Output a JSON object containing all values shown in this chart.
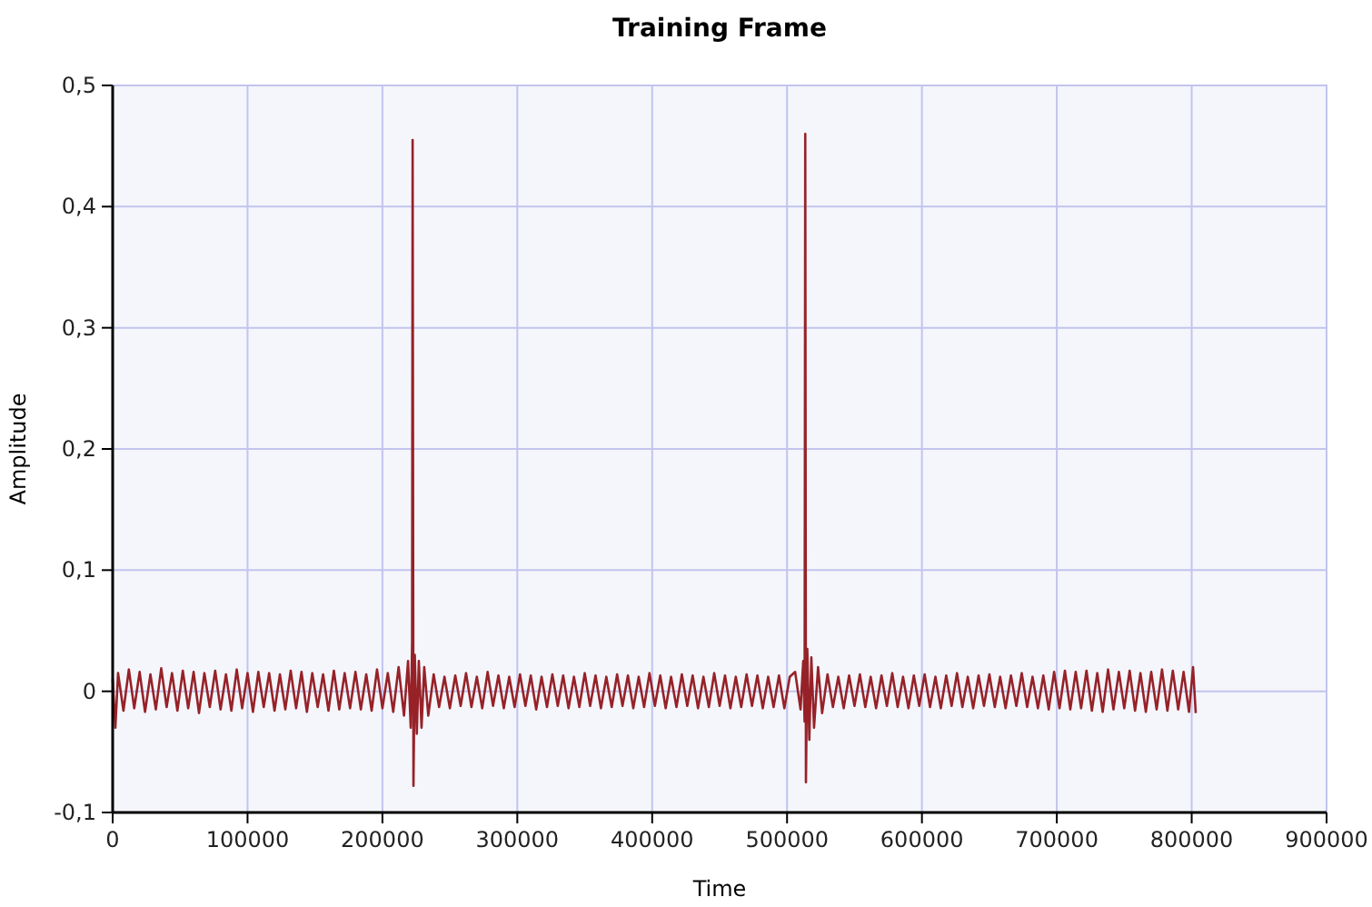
{
  "chart_data": {
    "type": "line",
    "title": "Training Frame",
    "xlabel": "Time",
    "ylabel": "Amplitude",
    "xlim": [
      0,
      900000
    ],
    "xticks": [
      0,
      100000,
      200000,
      300000,
      400000,
      500000,
      600000,
      700000,
      800000,
      900000
    ],
    "ylim": [
      -0.1,
      0.5
    ],
    "yticks": [
      {
        "value": -0.1,
        "label": "-0,1"
      },
      {
        "value": 0,
        "label": "0"
      },
      {
        "value": 0.1,
        "label": "0,1"
      },
      {
        "value": 0.2,
        "label": "0,2"
      },
      {
        "value": 0.3,
        "label": "0,3"
      },
      {
        "value": 0.4,
        "label": "0,4"
      },
      {
        "value": 0.5,
        "label": "0,5"
      }
    ],
    "grid": true,
    "marker": "none",
    "line_style": "solid",
    "series": [
      {
        "color": "#962228",
        "x": [
          0,
          2000,
          4000,
          8000,
          12000,
          16000,
          20000,
          24000,
          28000,
          32000,
          36000,
          40000,
          44000,
          48000,
          52000,
          56000,
          60000,
          64000,
          68000,
          72000,
          76000,
          80000,
          84000,
          88000,
          92000,
          96000,
          100000,
          104000,
          108000,
          112000,
          116000,
          120000,
          124000,
          128000,
          132000,
          136000,
          140000,
          144000,
          148000,
          152000,
          156000,
          160000,
          164000,
          168000,
          172000,
          176000,
          180000,
          184000,
          188000,
          192000,
          196000,
          200000,
          204000,
          208000,
          212000,
          216000,
          219000,
          221000,
          222000,
          222400,
          223000,
          224000,
          225500,
          227000,
          229000,
          231000,
          234000,
          238000,
          242000,
          246000,
          250000,
          254000,
          258000,
          262000,
          266000,
          270000,
          274000,
          278000,
          282000,
          286000,
          290000,
          294000,
          298000,
          302000,
          306000,
          310000,
          314000,
          318000,
          322000,
          326000,
          330000,
          334000,
          338000,
          342000,
          346000,
          350000,
          354000,
          358000,
          362000,
          366000,
          370000,
          374000,
          378000,
          382000,
          386000,
          390000,
          394000,
          398000,
          402000,
          406000,
          410000,
          414000,
          418000,
          422000,
          426000,
          430000,
          434000,
          438000,
          442000,
          446000,
          450000,
          454000,
          458000,
          462000,
          466000,
          470000,
          474000,
          478000,
          482000,
          486000,
          490000,
          494000,
          498000,
          502000,
          506000,
          510000,
          512000,
          513000,
          513500,
          514000,
          515000,
          516500,
          518000,
          520000,
          523000,
          526000,
          530000,
          534000,
          538000,
          542000,
          546000,
          550000,
          554000,
          558000,
          562000,
          566000,
          570000,
          574000,
          578000,
          582000,
          586000,
          590000,
          594000,
          598000,
          602000,
          606000,
          610000,
          614000,
          618000,
          622000,
          626000,
          630000,
          634000,
          638000,
          642000,
          646000,
          650000,
          654000,
          658000,
          662000,
          666000,
          670000,
          674000,
          678000,
          682000,
          686000,
          690000,
          694000,
          698000,
          702000,
          706000,
          710000,
          714000,
          718000,
          722000,
          726000,
          730000,
          734000,
          738000,
          742000,
          746000,
          750000,
          754000,
          758000,
          762000,
          766000,
          770000,
          774000,
          778000,
          782000,
          786000,
          790000,
          794000,
          798000,
          801000,
          803000
        ],
        "values": [
          0.01,
          -0.03,
          0.015,
          -0.016,
          0.018,
          -0.014,
          0.016,
          -0.017,
          0.014,
          -0.015,
          0.019,
          -0.013,
          0.015,
          -0.016,
          0.017,
          -0.014,
          0.016,
          -0.018,
          0.015,
          -0.013,
          0.017,
          -0.015,
          0.014,
          -0.016,
          0.018,
          -0.014,
          0.015,
          -0.017,
          0.016,
          -0.013,
          0.015,
          -0.016,
          0.014,
          -0.015,
          0.017,
          -0.014,
          0.016,
          -0.017,
          0.015,
          -0.013,
          0.014,
          -0.016,
          0.017,
          -0.015,
          0.015,
          -0.014,
          0.016,
          -0.015,
          0.014,
          -0.016,
          0.018,
          -0.014,
          0.015,
          -0.017,
          0.02,
          -0.02,
          0.025,
          -0.03,
          0.04,
          0.455,
          -0.078,
          0.03,
          -0.035,
          0.025,
          -0.03,
          0.02,
          -0.02,
          0.014,
          -0.013,
          0.012,
          -0.014,
          0.013,
          -0.012,
          0.015,
          -0.013,
          0.012,
          -0.014,
          0.016,
          -0.012,
          0.013,
          -0.014,
          0.012,
          -0.013,
          0.014,
          -0.012,
          0.013,
          -0.015,
          0.012,
          -0.013,
          0.014,
          -0.012,
          0.013,
          -0.014,
          0.012,
          -0.013,
          0.015,
          -0.012,
          0.013,
          -0.014,
          0.012,
          -0.013,
          0.014,
          -0.012,
          0.013,
          -0.014,
          0.012,
          -0.013,
          0.015,
          -0.012,
          0.013,
          -0.014,
          0.012,
          -0.013,
          0.014,
          -0.012,
          0.013,
          -0.014,
          0.012,
          -0.013,
          0.015,
          -0.012,
          0.013,
          -0.014,
          0.012,
          -0.013,
          0.014,
          -0.012,
          0.013,
          -0.014,
          0.012,
          -0.013,
          0.013,
          -0.014,
          0.012,
          0.016,
          -0.015,
          0.025,
          -0.025,
          0.46,
          -0.075,
          0.035,
          -0.04,
          0.028,
          -0.03,
          0.02,
          -0.018,
          0.014,
          -0.013,
          0.012,
          -0.014,
          0.013,
          -0.012,
          0.014,
          -0.013,
          0.012,
          -0.014,
          0.013,
          -0.012,
          0.015,
          -0.013,
          0.012,
          -0.014,
          0.013,
          -0.012,
          0.014,
          -0.013,
          0.012,
          -0.014,
          0.013,
          -0.012,
          0.015,
          -0.013,
          0.012,
          -0.014,
          0.013,
          -0.012,
          0.014,
          -0.013,
          0.012,
          -0.014,
          0.013,
          -0.012,
          0.015,
          -0.013,
          0.012,
          -0.014,
          0.013,
          -0.015,
          0.016,
          -0.014,
          0.017,
          -0.015,
          0.016,
          -0.014,
          0.017,
          -0.016,
          0.015,
          -0.017,
          0.018,
          -0.015,
          0.016,
          -0.014,
          0.017,
          -0.016,
          0.015,
          -0.017,
          0.016,
          -0.015,
          0.018,
          -0.016,
          0.017,
          -0.015,
          0.016,
          -0.017,
          0.02,
          -0.018
        ]
      }
    ]
  }
}
